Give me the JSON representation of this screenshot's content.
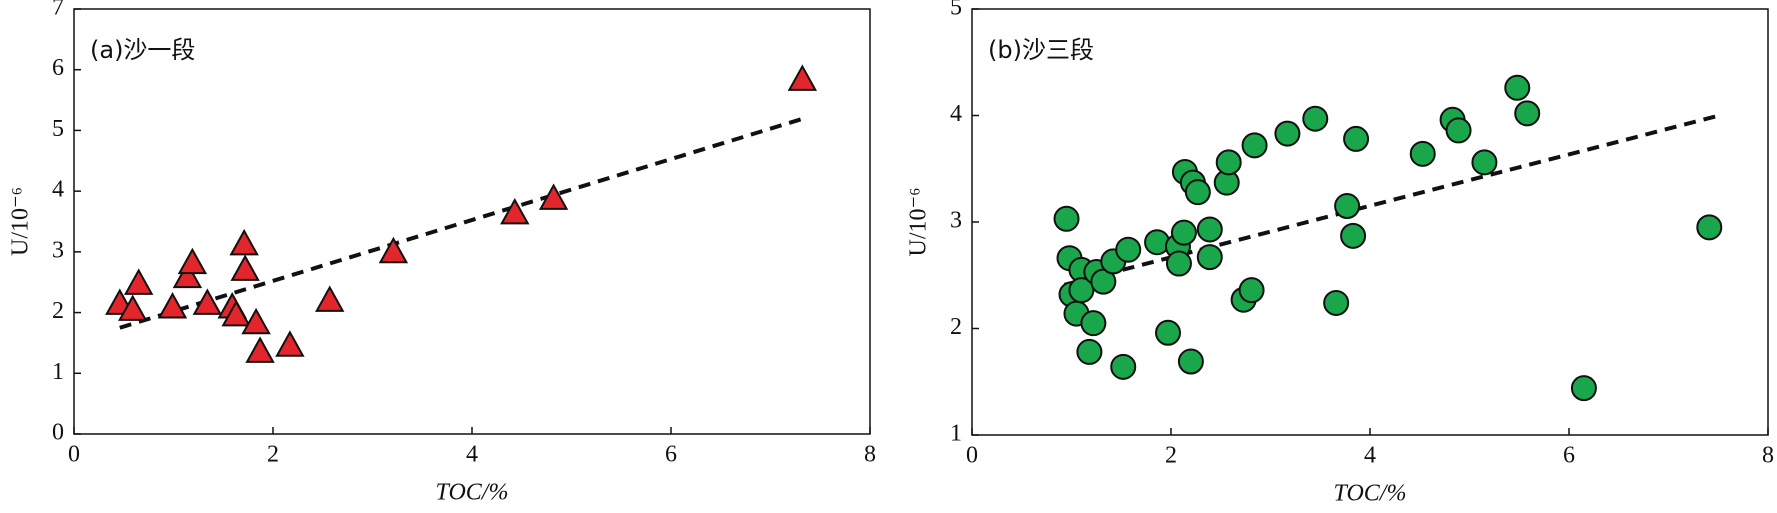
{
  "chart_data": [
    {
      "type": "scatter",
      "title": "(a)沙一段",
      "xlabel": "TOC/%",
      "ylabel": "U/10⁻⁶",
      "x": [
        0.46,
        0.59,
        0.65,
        0.99,
        1.14,
        1.19,
        1.34,
        1.59,
        1.63,
        1.71,
        1.72,
        1.83,
        1.87,
        2.17,
        2.57,
        3.21,
        4.43,
        4.82,
        7.32
      ],
      "values": [
        2.15,
        2.05,
        2.48,
        2.09,
        2.59,
        2.82,
        2.15,
        2.09,
        1.96,
        3.13,
        2.71,
        1.83,
        1.36,
        1.46,
        2.2,
        3.0,
        3.64,
        3.88,
        5.84
      ],
      "color": "#e3262b",
      "marker": "triangle",
      "trendline": {
        "x": [
          0.46,
          7.32
        ],
        "y": [
          1.75,
          5.19
        ]
      },
      "xlim": [
        0,
        8
      ],
      "xticks": [
        0,
        2,
        4,
        6,
        8
      ],
      "ylim": [
        0,
        7
      ],
      "yticks": [
        0,
        1,
        2,
        3,
        4,
        5,
        6,
        7
      ]
    },
    {
      "type": "scatter",
      "title": "(b)沙三段",
      "xlabel": "TOC/%",
      "ylabel": "U/10⁻⁶",
      "x": [
        0.95,
        0.98,
        1.0,
        1.05,
        1.1,
        1.1,
        1.22,
        1.18,
        1.25,
        1.32,
        1.42,
        1.52,
        1.57,
        1.86,
        1.97,
        2.07,
        2.08,
        2.13,
        2.14,
        2.22,
        2.27,
        2.2,
        2.39,
        2.39,
        2.56,
        2.58,
        2.73,
        2.81,
        2.84,
        3.17,
        3.45,
        3.66,
        3.77,
        3.83,
        3.86,
        4.53,
        4.83,
        4.89,
        5.15,
        5.48,
        5.58,
        6.15,
        7.41
      ],
      "values": [
        3.03,
        2.66,
        2.32,
        2.14,
        2.55,
        2.36,
        2.05,
        1.78,
        2.53,
        2.44,
        2.63,
        1.64,
        2.74,
        2.81,
        1.96,
        2.77,
        2.61,
        2.9,
        3.47,
        3.37,
        3.28,
        1.69,
        2.93,
        2.67,
        3.37,
        3.56,
        2.27,
        2.36,
        3.72,
        3.83,
        3.97,
        2.24,
        3.15,
        2.87,
        3.78,
        3.64,
        3.96,
        3.86,
        3.56,
        4.26,
        4.02,
        1.44,
        2.95
      ],
      "color": "#1aa64a",
      "marker": "circle",
      "trendline": {
        "x": [
          0.93,
          7.47
        ],
        "y": [
          2.41,
          3.99
        ]
      },
      "xlim": [
        0,
        8
      ],
      "xticks": [
        0,
        2,
        4,
        6,
        8
      ],
      "ylim": [
        1,
        5
      ],
      "yticks": [
        1,
        2,
        3,
        4,
        5
      ]
    }
  ]
}
